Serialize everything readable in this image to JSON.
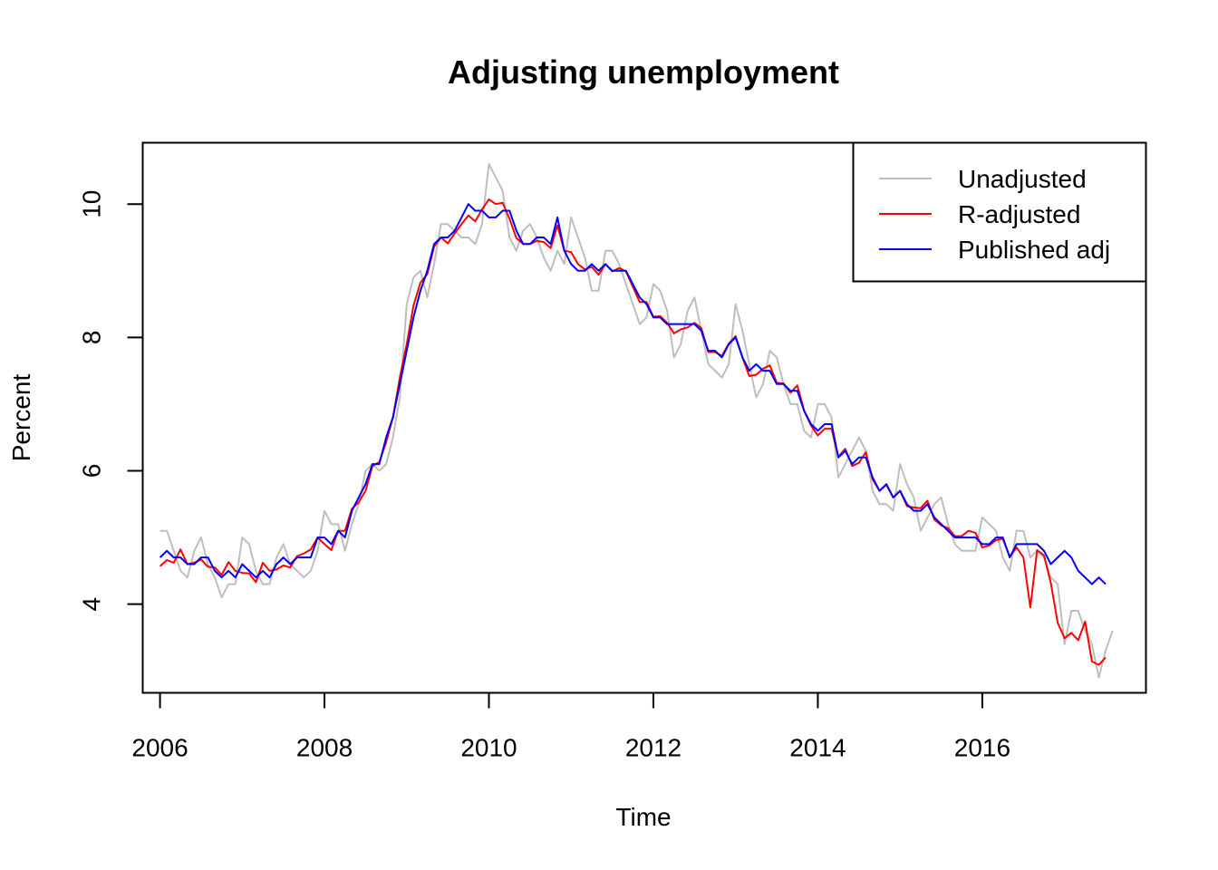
{
  "chart_data": {
    "type": "line",
    "title": "Adjusting unemployment",
    "xlabel": "Time",
    "ylabel": "Percent",
    "xlim": [
      2005.79,
      2017.99
    ],
    "ylim": [
      2.67,
      10.92
    ],
    "x_ticks": [
      2006,
      2008,
      2010,
      2012,
      2014,
      2016
    ],
    "y_ticks": [
      4,
      6,
      8,
      10
    ],
    "legend_position": "top-right",
    "x_start": 2006.0,
    "x_step": 0.0833333,
    "series": [
      {
        "name": "Unadjusted",
        "color": "#BEBEBE",
        "values": [
          5.1,
          5.1,
          4.8,
          4.5,
          4.4,
          4.8,
          5.0,
          4.6,
          4.4,
          4.1,
          4.3,
          4.3,
          5.0,
          4.9,
          4.5,
          4.3,
          4.3,
          4.7,
          4.9,
          4.6,
          4.5,
          4.4,
          4.5,
          4.8,
          5.4,
          5.2,
          5.2,
          4.8,
          5.2,
          5.5,
          6.0,
          6.1,
          6.0,
          6.1,
          6.5,
          7.1,
          8.5,
          8.9,
          9.0,
          8.6,
          9.1,
          9.7,
          9.7,
          9.6,
          9.5,
          9.5,
          9.4,
          9.7,
          10.6,
          10.4,
          10.2,
          9.5,
          9.3,
          9.6,
          9.7,
          9.5,
          9.2,
          9.0,
          9.3,
          9.1,
          9.8,
          9.5,
          9.2,
          8.7,
          8.7,
          9.3,
          9.3,
          9.1,
          8.8,
          8.5,
          8.2,
          8.3,
          8.8,
          8.7,
          8.4,
          7.7,
          7.9,
          8.4,
          8.6,
          8.1,
          7.6,
          7.5,
          7.4,
          7.6,
          8.5,
          8.1,
          7.6,
          7.1,
          7.3,
          7.8,
          7.7,
          7.3,
          7.0,
          7.0,
          6.6,
          6.5,
          7.0,
          7.0,
          6.8,
          5.9,
          6.1,
          6.3,
          6.5,
          6.3,
          5.7,
          5.5,
          5.5,
          5.4,
          6.1,
          5.8,
          5.6,
          5.1,
          5.3,
          5.5,
          5.6,
          5.2,
          4.9,
          4.8,
          4.8,
          4.8,
          5.3,
          5.2,
          5.1,
          4.7,
          4.5,
          5.1,
          5.1,
          4.7,
          4.8,
          4.7,
          4.4,
          4.3,
          3.4,
          3.9,
          3.9,
          3.6,
          3.4,
          2.9,
          3.3,
          3.6
        ]
      },
      {
        "name": "R-adjusted",
        "color": "#FF0000",
        "values": [
          4.57,
          4.66,
          4.62,
          4.82,
          4.6,
          4.62,
          4.67,
          4.56,
          4.55,
          4.44,
          4.63,
          4.5,
          4.47,
          4.46,
          4.33,
          4.62,
          4.5,
          4.52,
          4.58,
          4.55,
          4.72,
          4.76,
          4.82,
          5.0,
          4.9,
          4.81,
          5.1,
          5.1,
          5.43,
          5.53,
          5.7,
          6.07,
          6.13,
          6.43,
          6.8,
          7.4,
          7.9,
          8.48,
          8.82,
          8.95,
          9.36,
          9.5,
          9.41,
          9.56,
          9.7,
          9.83,
          9.74,
          9.92,
          10.07,
          10.0,
          10.02,
          9.78,
          9.49,
          9.4,
          9.4,
          9.45,
          9.43,
          9.34,
          9.68,
          9.3,
          9.28,
          9.1,
          9.02,
          9.06,
          8.94,
          9.1,
          8.99,
          9.04,
          8.99,
          8.76,
          8.53,
          8.53,
          8.31,
          8.32,
          8.22,
          8.06,
          8.12,
          8.15,
          8.22,
          8.14,
          7.78,
          7.78,
          7.72,
          7.91,
          8.02,
          7.7,
          7.42,
          7.44,
          7.53,
          7.58,
          7.32,
          7.31,
          7.17,
          7.28,
          6.9,
          6.68,
          6.53,
          6.63,
          6.63,
          6.21,
          6.33,
          6.07,
          6.12,
          6.28,
          5.87,
          5.7,
          5.79,
          5.6,
          5.7,
          5.47,
          5.45,
          5.44,
          5.55,
          5.27,
          5.18,
          5.14,
          5.02,
          5.02,
          5.1,
          5.07,
          4.85,
          4.88,
          4.96,
          4.98,
          4.71,
          4.85,
          4.7,
          3.95,
          4.81,
          4.73,
          4.32,
          3.72,
          3.49,
          3.57,
          3.46,
          3.74,
          3.14,
          3.09,
          3.2
        ]
      },
      {
        "name": "Published adj",
        "color": "#0000FF",
        "values": [
          4.7,
          4.8,
          4.7,
          4.7,
          4.6,
          4.6,
          4.7,
          4.7,
          4.5,
          4.4,
          4.5,
          4.4,
          4.6,
          4.5,
          4.4,
          4.5,
          4.4,
          4.6,
          4.7,
          4.6,
          4.7,
          4.7,
          4.7,
          5.0,
          5.0,
          4.9,
          5.1,
          5.0,
          5.4,
          5.6,
          5.8,
          6.1,
          6.1,
          6.5,
          6.8,
          7.3,
          7.8,
          8.3,
          8.7,
          9.0,
          9.4,
          9.5,
          9.5,
          9.6,
          9.8,
          10.0,
          9.9,
          9.9,
          9.8,
          9.8,
          9.9,
          9.9,
          9.6,
          9.4,
          9.4,
          9.5,
          9.5,
          9.4,
          9.8,
          9.3,
          9.1,
          9.0,
          9.0,
          9.1,
          9.0,
          9.1,
          9.0,
          9.0,
          9.0,
          8.8,
          8.6,
          8.5,
          8.3,
          8.3,
          8.2,
          8.2,
          8.2,
          8.2,
          8.2,
          8.1,
          7.8,
          7.8,
          7.7,
          7.9,
          8.0,
          7.7,
          7.5,
          7.6,
          7.5,
          7.5,
          7.3,
          7.3,
          7.2,
          7.2,
          6.9,
          6.7,
          6.6,
          6.7,
          6.7,
          6.2,
          6.3,
          6.1,
          6.2,
          6.2,
          5.9,
          5.7,
          5.8,
          5.6,
          5.7,
          5.5,
          5.4,
          5.4,
          5.5,
          5.3,
          5.2,
          5.1,
          5.0,
          5.0,
          5.0,
          5.0,
          4.9,
          4.9,
          5.0,
          5.0,
          4.7,
          4.9,
          4.9,
          4.9,
          4.9,
          4.8,
          4.6,
          4.7,
          4.8,
          4.7,
          4.5,
          4.4,
          4.3,
          4.4,
          4.3
        ]
      }
    ]
  }
}
